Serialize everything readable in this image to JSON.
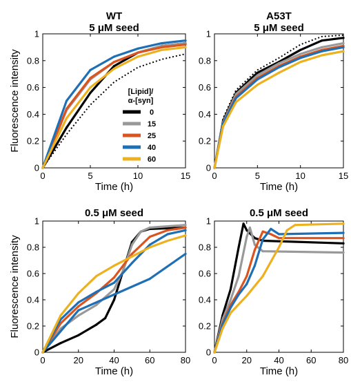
{
  "figure": {
    "colors": {
      "0": "#000000",
      "15": "#999999",
      "25": "#d9541e",
      "40": "#1f6fb4",
      "60": "#edb120"
    },
    "legend": {
      "title_line1": "[Lipid]/",
      "title_line2": "α-[syn]",
      "entries": [
        "0",
        "15",
        "25",
        "40",
        "60"
      ]
    }
  },
  "chart_data": [
    {
      "type": "line",
      "title_line1": "WT",
      "title_line2": "5 μM seed",
      "xlabel": "Time (h)",
      "ylabel": "Fluorescence intensity",
      "xlim": [
        0,
        15
      ],
      "ylim": [
        0,
        1
      ],
      "xticks": [
        0,
        5,
        10,
        15
      ],
      "yticks": [
        0,
        0.2,
        0.4,
        0.6,
        0.8,
        1
      ],
      "xtick_labels": [
        "0",
        "5",
        "10",
        "15"
      ],
      "ytick_labels": [
        "0",
        "0.2",
        "0.4",
        "0.6",
        "0.8",
        "1"
      ],
      "legend": true,
      "series": [
        {
          "name": "0",
          "x": [
            0,
            2.5,
            5,
            7.5,
            10,
            12.5,
            15
          ],
          "y": [
            0,
            0.3,
            0.56,
            0.76,
            0.86,
            0.91,
            0.93
          ],
          "replicate_y": [
            0,
            0.25,
            0.47,
            0.64,
            0.75,
            0.81,
            0.85
          ]
        },
        {
          "name": "15",
          "x": [
            0,
            2.5,
            5,
            7.5,
            10,
            12.5,
            15
          ],
          "y": [
            0,
            0.43,
            0.66,
            0.79,
            0.86,
            0.91,
            0.93
          ]
        },
        {
          "name": "25",
          "x": [
            0,
            2.5,
            5,
            7.5,
            10,
            12.5,
            15
          ],
          "y": [
            0,
            0.44,
            0.67,
            0.79,
            0.86,
            0.9,
            0.92
          ]
        },
        {
          "name": "40",
          "x": [
            0,
            2.5,
            5,
            7.5,
            10,
            12.5,
            15
          ],
          "y": [
            0,
            0.5,
            0.73,
            0.83,
            0.89,
            0.93,
            0.95
          ]
        },
        {
          "name": "60",
          "x": [
            0,
            2.5,
            5,
            7.5,
            10,
            12.5,
            15
          ],
          "y": [
            0,
            0.37,
            0.6,
            0.74,
            0.83,
            0.88,
            0.9
          ]
        }
      ]
    },
    {
      "type": "line",
      "title_line1": "A53T",
      "title_line2": "5 μM seed",
      "xlabel": "Time (h)",
      "ylabel": "",
      "xlim": [
        0,
        15
      ],
      "ylim": [
        0,
        1
      ],
      "xticks": [
        0,
        5,
        10,
        15
      ],
      "yticks": [
        0,
        0.2,
        0.4,
        0.6,
        0.8,
        1
      ],
      "xtick_labels": [
        "0",
        "5",
        "10",
        "15"
      ],
      "ytick_labels": [
        "0",
        "0.2",
        "0.4",
        "0.6",
        "0.8",
        "1"
      ],
      "legend": false,
      "series": [
        {
          "name": "0",
          "x": [
            0,
            1,
            2.5,
            5,
            7.5,
            10,
            12.5,
            15
          ],
          "y": [
            0,
            0.35,
            0.56,
            0.71,
            0.79,
            0.88,
            0.95,
            0.97
          ],
          "replicate_y": [
            0,
            0.37,
            0.58,
            0.73,
            0.82,
            0.92,
            0.98,
            0.99
          ]
        },
        {
          "name": "15",
          "x": [
            0,
            1,
            2.5,
            5,
            7.5,
            10,
            12.5,
            15
          ],
          "y": [
            0,
            0.34,
            0.55,
            0.69,
            0.78,
            0.85,
            0.9,
            0.93
          ]
        },
        {
          "name": "25",
          "x": [
            0,
            1,
            2.5,
            5,
            7.5,
            10,
            12.5,
            15
          ],
          "y": [
            0,
            0.33,
            0.53,
            0.67,
            0.76,
            0.83,
            0.88,
            0.91
          ]
        },
        {
          "name": "40",
          "x": [
            0,
            1,
            2.5,
            5,
            7.5,
            10,
            12.5,
            15
          ],
          "y": [
            0,
            0.33,
            0.52,
            0.66,
            0.75,
            0.82,
            0.87,
            0.9
          ]
        },
        {
          "name": "60",
          "x": [
            0,
            1,
            2.5,
            5,
            7.5,
            10,
            12.5,
            15
          ],
          "y": [
            0,
            0.31,
            0.49,
            0.62,
            0.71,
            0.79,
            0.84,
            0.87
          ]
        }
      ]
    },
    {
      "type": "line",
      "title_line1": "0.5 μM seed",
      "title_line2": "",
      "xlabel": "Time (h)",
      "ylabel": "Fluorescence intensity",
      "xlim": [
        0,
        80
      ],
      "ylim": [
        0,
        1
      ],
      "xticks": [
        0,
        20,
        40,
        60,
        80
      ],
      "yticks": [
        0,
        0.2,
        0.4,
        0.6,
        0.8,
        1
      ],
      "xtick_labels": [
        "0",
        "20",
        "40",
        "60",
        "80"
      ],
      "ytick_labels": [
        "0",
        "0.2",
        "0.4",
        "0.6",
        "0.8",
        "1"
      ],
      "legend": false,
      "series": [
        {
          "name": "0",
          "x": [
            0,
            10,
            20,
            30,
            35,
            40,
            45,
            50,
            55,
            60,
            80
          ],
          "y": [
            0,
            0.07,
            0.13,
            0.21,
            0.26,
            0.4,
            0.62,
            0.84,
            0.92,
            0.94,
            0.95
          ]
        },
        {
          "name": "15",
          "x": [
            0,
            10,
            20,
            30,
            40,
            45,
            50,
            55,
            60,
            80
          ],
          "y": [
            0,
            0.18,
            0.28,
            0.36,
            0.48,
            0.62,
            0.82,
            0.92,
            0.95,
            0.97
          ]
        },
        {
          "name": "25",
          "x": [
            0,
            10,
            20,
            30,
            40,
            50,
            60,
            70,
            80
          ],
          "y": [
            0,
            0.22,
            0.35,
            0.45,
            0.57,
            0.75,
            0.88,
            0.93,
            0.95
          ]
        },
        {
          "name": "40",
          "x": [
            0,
            10,
            20,
            30,
            40,
            50,
            60,
            70,
            80
          ],
          "y": [
            0,
            0.25,
            0.38,
            0.46,
            0.53,
            0.68,
            0.82,
            0.9,
            0.93
          ]
        },
        {
          "name": "40",
          "x": [
            0,
            20,
            40,
            60,
            80
          ],
          "y": [
            0,
            0.32,
            0.44,
            0.56,
            0.75
          ]
        },
        {
          "name": "60",
          "x": [
            0,
            10,
            20,
            30,
            40,
            50,
            60,
            70,
            80
          ],
          "y": [
            0,
            0.28,
            0.45,
            0.58,
            0.66,
            0.73,
            0.8,
            0.85,
            0.89
          ]
        }
      ]
    },
    {
      "type": "line",
      "title_line1": "0.5 μM seed",
      "title_line2": "",
      "xlabel": "Time (h)",
      "ylabel": "",
      "xlim": [
        0,
        80
      ],
      "ylim": [
        0,
        1
      ],
      "xticks": [
        0,
        20,
        40,
        60,
        80
      ],
      "yticks": [
        0,
        0.2,
        0.4,
        0.6,
        0.8,
        1
      ],
      "xtick_labels": [
        "0",
        "20",
        "40",
        "60",
        "80"
      ],
      "ytick_labels": [
        "0",
        "0.2",
        "0.4",
        "0.6",
        "0.8",
        "1"
      ],
      "legend": false,
      "series": [
        {
          "name": "0",
          "x": [
            0,
            5,
            10,
            15,
            18,
            20,
            25,
            30,
            80
          ],
          "y": [
            0,
            0.28,
            0.48,
            0.8,
            0.98,
            0.93,
            0.87,
            0.85,
            0.83
          ]
        },
        {
          "name": "15",
          "x": [
            0,
            5,
            10,
            15,
            20,
            22,
            25,
            30,
            80
          ],
          "y": [
            0,
            0.25,
            0.4,
            0.58,
            0.88,
            0.95,
            0.82,
            0.77,
            0.76
          ]
        },
        {
          "name": "25",
          "x": [
            0,
            5,
            10,
            15,
            20,
            25,
            30,
            35,
            40,
            80
          ],
          "y": [
            0,
            0.22,
            0.36,
            0.46,
            0.58,
            0.78,
            0.92,
            0.9,
            0.87,
            0.87
          ]
        },
        {
          "name": "40",
          "x": [
            0,
            5,
            10,
            15,
            20,
            25,
            30,
            35,
            40,
            80
          ],
          "y": [
            0,
            0.21,
            0.34,
            0.44,
            0.52,
            0.66,
            0.86,
            0.94,
            0.9,
            0.91
          ]
        },
        {
          "name": "60",
          "x": [
            0,
            5,
            10,
            20,
            30,
            40,
            45,
            50,
            80
          ],
          "y": [
            0,
            0.18,
            0.3,
            0.43,
            0.58,
            0.8,
            0.93,
            0.97,
            0.98
          ]
        }
      ]
    }
  ]
}
